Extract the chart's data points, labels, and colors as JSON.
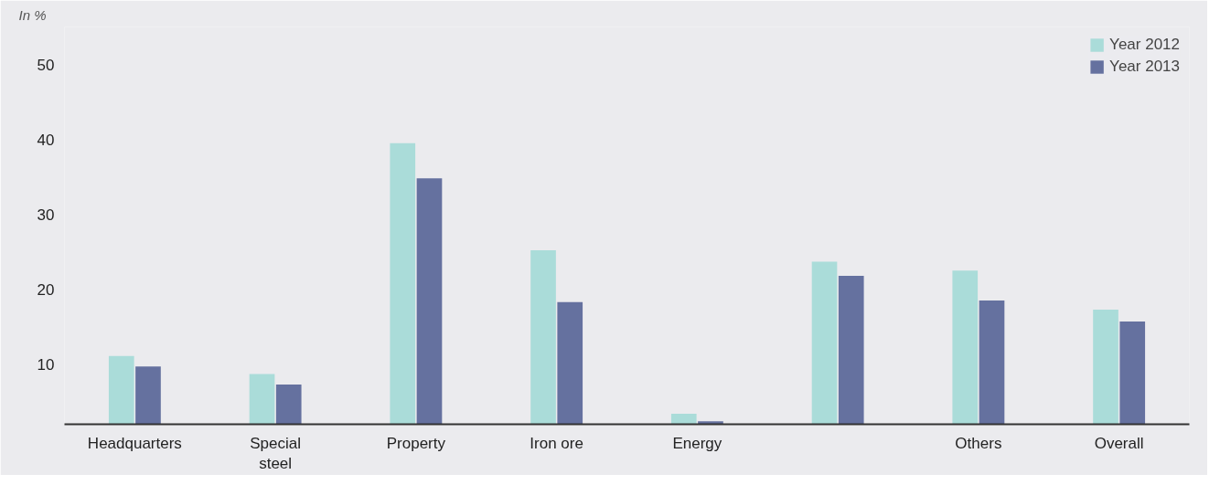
{
  "chart_data": {
    "type": "bar",
    "ylabel": "In %",
    "categories": [
      "Headquarters",
      "Special\nsteel",
      "Property",
      "Iron ore",
      "Energy",
      null,
      "Others",
      "Overall"
    ],
    "series": [
      {
        "name": "Year 2012",
        "color": "#aadcd9",
        "values": [
          11.1,
          8.7,
          39.5,
          25.2,
          3.4,
          23.7,
          22.5,
          17.3
        ]
      },
      {
        "name": "Year 2013",
        "color": "#65719f",
        "values": [
          9.7,
          7.3,
          34.8,
          18.3,
          2.4,
          21.8,
          18.5,
          15.7
        ]
      }
    ],
    "ylim": [
      2,
      55
    ],
    "yticks": [
      10,
      20,
      30,
      40,
      50
    ],
    "grid": false,
    "legend": "top right"
  }
}
